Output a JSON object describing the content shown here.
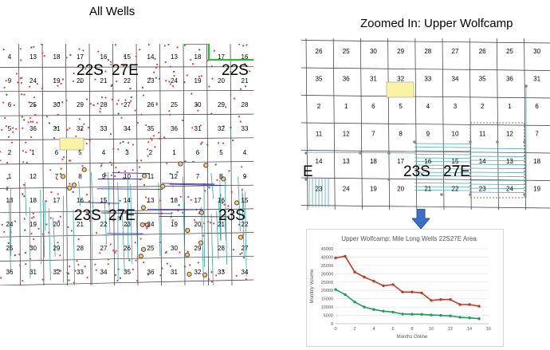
{
  "titles": {
    "left": "All Wells",
    "right": "Zoomed In:  Upper Wolfcamp"
  },
  "left_map": {
    "township_labels": [
      "22S",
      "27E",
      "22S",
      "23S",
      "27E",
      "23S"
    ],
    "rows": [
      [
        "4",
        "13",
        "18",
        "17",
        "16",
        "15",
        "14",
        "13",
        "18",
        "17",
        "16"
      ],
      [
        "9",
        "24",
        "19",
        "20",
        "21",
        "22",
        "23",
        "24",
        "19",
        "20",
        "21"
      ],
      [
        "6",
        "25",
        "30",
        "29",
        "28",
        "27",
        "26",
        "25",
        "30",
        "29",
        "28"
      ],
      [
        "5",
        "36",
        "31",
        "32",
        "33",
        "34",
        "35",
        "36",
        "31",
        "32",
        "33"
      ],
      [
        "2",
        "1",
        "6",
        "5",
        "4",
        "3",
        "2",
        "1",
        "6",
        "5",
        "4"
      ],
      [
        "1",
        "12",
        "7",
        "8",
        "9",
        "10",
        "11",
        "12",
        "7",
        "8",
        "9"
      ],
      [
        "13",
        "18",
        "17",
        "16",
        "15",
        "14",
        "13",
        "18",
        "17",
        "16",
        "15"
      ],
      [
        "24",
        "19",
        "20",
        "21",
        "22",
        "23",
        "24",
        "19",
        "20",
        "21",
        "22"
      ],
      [
        "25",
        "30",
        "29",
        "28",
        "27",
        "26",
        "25",
        "30",
        "29",
        "28",
        "27"
      ],
      [
        "36",
        "31",
        "32",
        "33",
        "34",
        "35",
        "36",
        "31",
        "32",
        "33",
        "34"
      ]
    ]
  },
  "right_map": {
    "township_labels": [
      "E",
      "23S",
      "27E"
    ],
    "rows": [
      [
        "26",
        "25",
        "30",
        "29",
        "28",
        "27",
        "26",
        "25",
        "30"
      ],
      [
        "35",
        "36",
        "31",
        "32",
        "33",
        "34",
        "35",
        "36",
        "31"
      ],
      [
        "2",
        "1",
        "6",
        "5",
        "4",
        "3",
        "2",
        "1",
        "6"
      ],
      [
        "11",
        "12",
        "7",
        "8",
        "9",
        "10",
        "11",
        "12",
        "7"
      ],
      [
        "14",
        "13",
        "18",
        "17",
        "16",
        "15",
        "14",
        "13",
        "18"
      ],
      [
        "23",
        "24",
        "19",
        "20",
        "21",
        "22",
        "23",
        "24",
        "19"
      ]
    ]
  },
  "chart_data": {
    "type": "line",
    "title": "Upper Wolfcamp:  Mile Long Wells 22S27E Area",
    "xlabel": "Months Online",
    "ylabel": "Monthly Volume",
    "xlim": [
      0,
      16
    ],
    "ylim": [
      0,
      45000
    ],
    "xticks": [
      0,
      2,
      4,
      6,
      8,
      10,
      12,
      14,
      16
    ],
    "yticks": [
      0,
      5000,
      10000,
      15000,
      20000,
      25000,
      30000,
      35000,
      40000,
      45000
    ],
    "series": [
      {
        "color": "#c0392b",
        "x": [
          0,
          1,
          2,
          3,
          4,
          5,
          6,
          7,
          8,
          9,
          10,
          11,
          12,
          13,
          14,
          15
        ],
        "values": [
          39500,
          40500,
          31000,
          28000,
          25500,
          22800,
          23500,
          19000,
          19000,
          18500,
          14000,
          14500,
          14500,
          11500,
          11500,
          10500
        ]
      },
      {
        "color": "#1e9e5a",
        "x": [
          0,
          1,
          2,
          3,
          4,
          5,
          6,
          7,
          8,
          9,
          10,
          11,
          12,
          13,
          14,
          15
        ],
        "values": [
          20500,
          17500,
          13000,
          10000,
          8500,
          7500,
          7000,
          5800,
          5700,
          5600,
          5200,
          5000,
          4700,
          3900,
          3500,
          3000
        ]
      }
    ]
  }
}
